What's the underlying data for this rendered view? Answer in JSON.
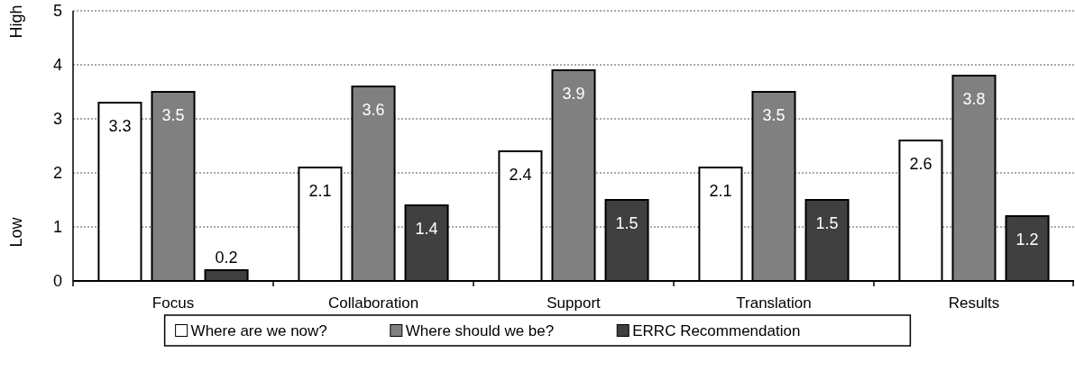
{
  "chart_data": {
    "type": "bar",
    "categories": [
      "Focus",
      "Collaboration",
      "Support",
      "Translation",
      "Results"
    ],
    "series": [
      {
        "name": "Where are we now?",
        "color": "#ffffff",
        "values": [
          3.3,
          2.1,
          2.4,
          2.1,
          2.6
        ]
      },
      {
        "name": "Where should we be?",
        "color": "#808080",
        "values": [
          3.5,
          3.6,
          3.9,
          3.5,
          3.8
        ]
      },
      {
        "name": "ERRC Recommendation",
        "color": "#404040",
        "values": [
          0.2,
          1.4,
          1.5,
          1.5,
          1.2
        ]
      }
    ],
    "ylim": [
      0,
      5
    ],
    "yticks": [
      0,
      1,
      2,
      3,
      4,
      5
    ],
    "grid": "y",
    "legend": "bottom",
    "data_labels": true,
    "annotations": [
      "Low",
      "High"
    ]
  }
}
